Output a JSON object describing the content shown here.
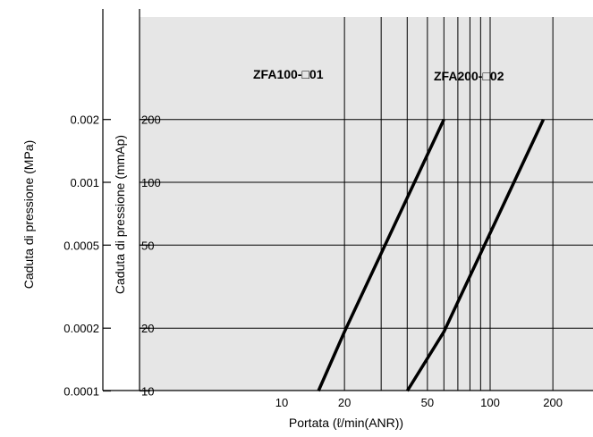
{
  "chart_data": {
    "type": "line",
    "title": "",
    "xlabel": "Portata (ℓ/min(ANR))",
    "ylabel_left": "Caduta di pressione (MPa)",
    "ylabel_inner": "Caduta di pressione  (mmAp)",
    "x_scale": "log",
    "y_scale": "log",
    "xlim": [
      10,
      260
    ],
    "ylim_mmAp": [
      10,
      200
    ],
    "ylim_MPa": [
      0.0001,
      0.002
    ],
    "x_ticks": [
      10,
      50,
      100,
      200
    ],
    "x_tick_labels": [
      "10",
      "50",
      "100",
      "200"
    ],
    "x_tick_20": "20",
    "y_ticks_mmAp": [
      10,
      20,
      50,
      100,
      200
    ],
    "y_tick_labels_mmAp": [
      "10",
      "20",
      "50",
      "100",
      "200"
    ],
    "y_ticks_MPa": [
      0.0001,
      0.0002,
      0.0005,
      0.001,
      0.002
    ],
    "y_tick_labels_MPa": [
      "0.0001",
      "0.0002",
      "0.0005",
      "0.001",
      "0.002"
    ],
    "grid": true,
    "background": "#e6e6e6",
    "line_color": "#000000",
    "series": [
      {
        "name": "ZFA100-□01",
        "points": [
          [
            15,
            10
          ],
          [
            20,
            19.2
          ],
          [
            60,
            200
          ]
        ]
      },
      {
        "name": "ZFA200-□02",
        "points": [
          [
            40,
            10
          ],
          [
            60,
            19.2
          ],
          [
            180,
            200
          ]
        ]
      }
    ]
  }
}
